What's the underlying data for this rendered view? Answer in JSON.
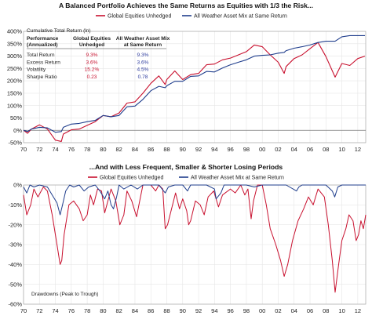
{
  "colors": {
    "equities": "#c8102e",
    "all_weather": "#1f3d8c",
    "table_equities": "#c8102e",
    "table_all_weather": "#2e3c9e"
  },
  "chart_data": [
    {
      "type": "line",
      "title": "A Balanced Portfolio Achieves the Same Returns as Equities with 1/3 the Risk...",
      "subtitle": "Cumulative Total Return (ln)",
      "x_ticks": [
        "70",
        "72",
        "74",
        "76",
        "78",
        "80",
        "82",
        "84",
        "86",
        "88",
        "90",
        "92",
        "94",
        "96",
        "98",
        "00",
        "02",
        "04",
        "06",
        "08",
        "10",
        "12"
      ],
      "y_ticks": [
        "-50%",
        "0%",
        "50%",
        "100%",
        "150%",
        "200%",
        "250%",
        "300%",
        "350%",
        "400%"
      ],
      "ylim": [
        -50,
        400
      ],
      "xlim": [
        1970,
        2013
      ],
      "grid": true,
      "legend": "top",
      "x": [
        1970,
        1970.5,
        1971,
        1972,
        1973,
        1974,
        1974.75,
        1975,
        1976,
        1977,
        1978,
        1979,
        1980,
        1981,
        1982,
        1983,
        1984,
        1985,
        1986,
        1987,
        1987.8,
        1988,
        1989,
        1990,
        1991,
        1992,
        1993,
        1994,
        1995,
        1996,
        1997,
        1998,
        1999,
        2000,
        2001,
        2002,
        2002.75,
        2003,
        2004,
        2005,
        2006,
        2007,
        2008,
        2009.15,
        2010,
        2011,
        2012,
        2012.9
      ],
      "series": [
        {
          "name": "Global Equities Unhedged",
          "values": [
            0,
            -12,
            5,
            22,
            5,
            -40,
            -45,
            -15,
            2,
            5,
            20,
            35,
            60,
            55,
            70,
            110,
            115,
            150,
            190,
            220,
            185,
            205,
            240,
            205,
            225,
            230,
            265,
            268,
            285,
            292,
            305,
            318,
            345,
            338,
            305,
            275,
            230,
            258,
            290,
            305,
            330,
            355,
            298,
            215,
            270,
            262,
            290,
            300
          ]
        },
        {
          "name": "All Weather Asset Mix at Same Return",
          "values": [
            0,
            -5,
            5,
            12,
            10,
            -8,
            -5,
            12,
            25,
            28,
            35,
            40,
            60,
            55,
            60,
            95,
            98,
            125,
            160,
            178,
            172,
            180,
            198,
            198,
            218,
            220,
            238,
            236,
            252,
            265,
            275,
            285,
            300,
            303,
            305,
            312,
            315,
            322,
            332,
            338,
            345,
            355,
            360,
            360,
            378,
            383,
            383,
            383
          ]
        }
      ],
      "table": {
        "header": [
          "Performance (Annualized)",
          "Global Equities Unhedged",
          "All Weather Asset Mix at Same Return"
        ],
        "rows": [
          [
            "Total Return",
            "9.3%",
            "9.3%"
          ],
          [
            "Excess Return",
            "3.6%",
            "3.6%"
          ],
          [
            "Volatility",
            "15.2%",
            "4.5%"
          ],
          [
            "Sharpe Ratio",
            "0.23",
            "0.78"
          ]
        ]
      }
    },
    {
      "type": "line",
      "title": "...And with Less Frequent, Smaller & Shorter Losing Periods",
      "annotation": "Drawdowns (Peak to Trough)",
      "x_ticks": [
        "70",
        "72",
        "74",
        "76",
        "78",
        "80",
        "82",
        "84",
        "86",
        "88",
        "90",
        "92",
        "94",
        "96",
        "98",
        "00",
        "02",
        "04",
        "06",
        "08",
        "10",
        "12"
      ],
      "y_ticks": [
        "0%",
        "-10%",
        "-20%",
        "-30%",
        "-40%",
        "-50%",
        "-60%"
      ],
      "ylim": [
        -60,
        0
      ],
      "xlim": [
        1970,
        2013
      ],
      "grid": true,
      "legend": "top",
      "series": [
        {
          "name": "Global Equities Unhedged",
          "x": [
            1970,
            1970.4,
            1970.9,
            1971.3,
            1971.8,
            1972.5,
            1973.0,
            1973.6,
            1974.2,
            1974.6,
            1974.8,
            1975.1,
            1975.7,
            1976.3,
            1977.0,
            1977.5,
            1978.0,
            1978.4,
            1978.8,
            1979.3,
            1979.8,
            1980.2,
            1980.6,
            1981.0,
            1981.6,
            1982.1,
            1982.6,
            1983.0,
            1983.6,
            1984.2,
            1984.6,
            1985.0,
            1986.0,
            1986.6,
            1987.0,
            1987.5,
            1987.8,
            1988.1,
            1988.6,
            1989.1,
            1989.6,
            1990.0,
            1990.5,
            1990.75,
            1991.0,
            1991.6,
            1992.2,
            1992.7,
            1993.2,
            1993.9,
            1994.5,
            1995.0,
            1996.0,
            1996.6,
            1997.3,
            1997.8,
            1998.2,
            1998.6,
            1998.9,
            1999.4,
            2000.0,
            2000.5,
            2001.0,
            2001.7,
            2002.3,
            2002.75,
            2003.2,
            2003.8,
            2004.5,
            2005.2,
            2005.8,
            2006.4,
            2007.0,
            2007.8,
            2008.3,
            2008.8,
            2009.15,
            2009.6,
            2010.0,
            2010.5,
            2010.9,
            2011.4,
            2011.8,
            2012.1,
            2012.4,
            2012.7,
            2013.0
          ],
          "values": [
            -5,
            -15,
            -10,
            -2,
            -6,
            -1,
            -3,
            -15,
            -30,
            -40,
            -38,
            -25,
            -10,
            -8,
            -12,
            -18,
            -15,
            -5,
            -10,
            -2,
            -3,
            -14,
            -8,
            -2,
            -8,
            -20,
            -15,
            -3,
            -8,
            -16,
            -8,
            0,
            0,
            -3,
            0,
            -2,
            -22,
            -20,
            -12,
            -4,
            -12,
            -7,
            -13,
            -20,
            -18,
            -8,
            -10,
            -15,
            -6,
            -3,
            -11,
            -5,
            -2,
            -4,
            0,
            -5,
            -2,
            -17,
            -8,
            0,
            0,
            -10,
            -22,
            -30,
            -38,
            -46,
            -40,
            -28,
            -18,
            -12,
            -6,
            -10,
            -2,
            -6,
            -20,
            -38,
            -54,
            -40,
            -28,
            -22,
            -15,
            -18,
            -28,
            -25,
            -18,
            -22,
            -15
          ]
        },
        {
          "name": "All Weather Asset Mix at Same Return",
          "x": [
            1970,
            1970.4,
            1970.8,
            1971.3,
            1972.0,
            1973.0,
            1973.6,
            1974.2,
            1974.6,
            1974.9,
            1975.3,
            1975.8,
            1976.3,
            1977.0,
            1977.6,
            1978.2,
            1979.0,
            1979.6,
            1980.2,
            1980.6,
            1981.0,
            1981.3,
            1981.7,
            1982.0,
            1982.6,
            1983.5,
            1984.3,
            1985.0,
            1986.0,
            1987.0,
            1987.8,
            1988.2,
            1989.0,
            1990.0,
            1990.6,
            1991.0,
            1992.0,
            1993.0,
            1994.0,
            1994.2,
            1994.8,
            1995.2,
            1996.0,
            1997.0,
            1998.0,
            1999.0,
            2000.0,
            2001.0,
            2002.0,
            2003.0,
            2004.3,
            2004.6,
            2005.0,
            2006.0,
            2007.0,
            2008.0,
            2008.8,
            2009.1,
            2009.5,
            2010.0,
            2011.0,
            2012.0,
            2013.0
          ],
          "values": [
            -1,
            -4,
            0,
            -1,
            0,
            -1,
            -5,
            -9,
            -15,
            -10,
            -3,
            0,
            -1,
            0,
            -3,
            -1,
            0,
            -3,
            -7,
            -3,
            -10,
            -12,
            -6,
            0,
            -2,
            0,
            -2,
            0,
            0,
            0,
            -4,
            -1,
            0,
            0,
            -3,
            0,
            0,
            0,
            -2,
            -7,
            -4,
            0,
            0,
            0,
            0,
            -1,
            0,
            0,
            0,
            0,
            -3,
            -1,
            0,
            0,
            0,
            0,
            -3,
            -6,
            -1,
            0,
            0,
            0,
            0
          ]
        }
      ]
    }
  ]
}
